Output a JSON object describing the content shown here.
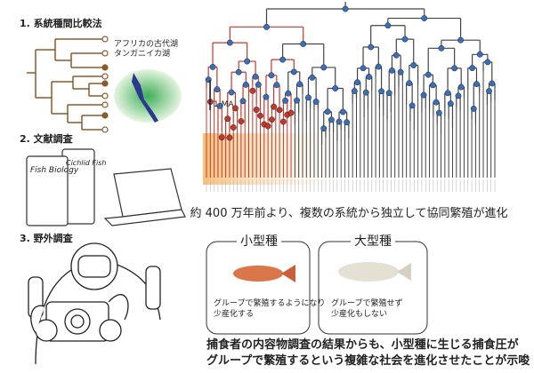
{
  "methods": [
    {
      "label": "1. 系統種間比較法",
      "lake_caption": [
        "アフリカの古代湖",
        "タンガニイカ湖"
      ]
    },
    {
      "label": "2. 文献調査",
      "books": [
        "Cichlid Fish",
        "Fish Biology"
      ]
    },
    {
      "label": "3. 野外調査"
    }
  ],
  "phylogeny": {
    "scale_label": "1 MA",
    "caption": "約 400 万年前より、複数の系統から独立して協同繁殖が進化"
  },
  "comparison": [
    {
      "title": "小型種",
      "text": [
        "グループで繁殖するようになり",
        "少産化する"
      ]
    },
    {
      "title": "大型種",
      "text": [
        "グループで繁殖せず",
        "少産化もしない"
      ]
    }
  ],
  "conclusion": [
    "捕食者の内容物調査の結果からも、小型種に生じる捕食圧が",
    "グループで繁殖するという複雑な社会を進化させたことが示唆"
  ]
}
